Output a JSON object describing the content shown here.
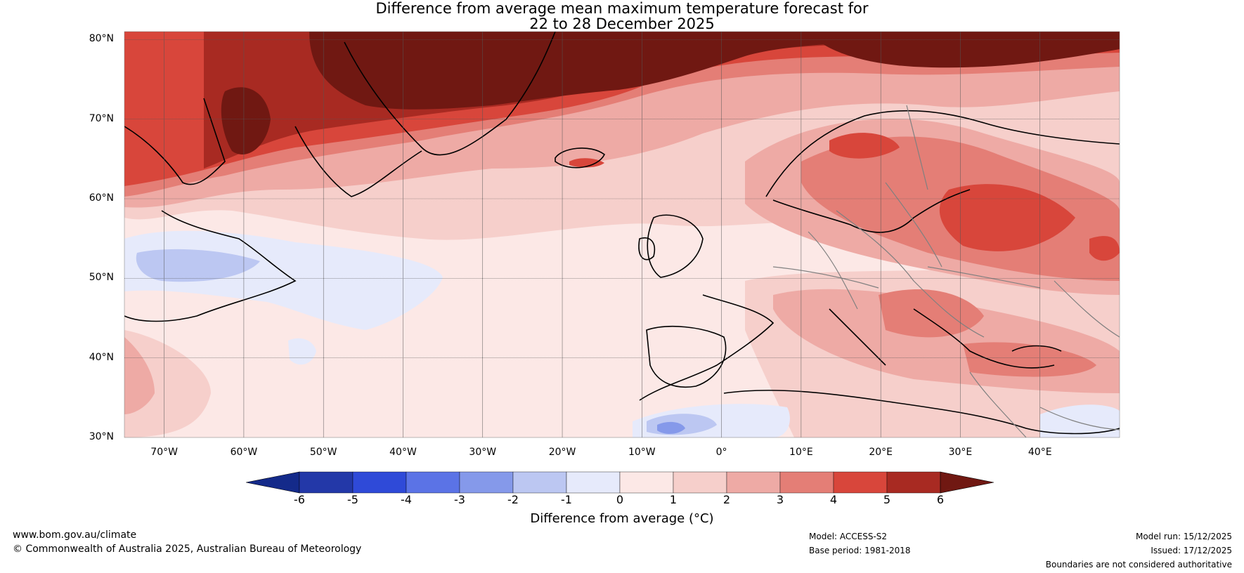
{
  "title": {
    "line1": "Difference from average mean maximum temperature forecast for",
    "line2": "22 to 28 December 2025"
  },
  "map": {
    "lat_labels": [
      "80°N",
      "70°N",
      "60°N",
      "50°N",
      "40°N",
      "30°N"
    ],
    "lon_labels": [
      "70°W",
      "60°W",
      "50°W",
      "40°W",
      "30°W",
      "20°W",
      "10°W",
      "0°",
      "10°E",
      "20°E",
      "30°E",
      "40°E"
    ],
    "lat_range": [
      30,
      81
    ],
    "lon_range": [
      -75,
      50
    ],
    "ocean_anomaly_color": "#fce8e6",
    "coastline_color": "#000000",
    "border_color": "#808080"
  },
  "colorbar": {
    "label": "Difference from average (°C)",
    "ticks": [
      "-6",
      "-5",
      "-4",
      "-3",
      "-2",
      "-1",
      "0",
      "1",
      "2",
      "3",
      "4",
      "5",
      "6"
    ],
    "low_extend_color": "#142a8a",
    "high_extend_color": "#701812",
    "bins": [
      {
        "from": -6,
        "to": -5,
        "color": "#2338a8"
      },
      {
        "from": -5,
        "to": -4,
        "color": "#2f4ad8"
      },
      {
        "from": -4,
        "to": -3,
        "color": "#5b73e6"
      },
      {
        "from": -3,
        "to": -2,
        "color": "#8599ea"
      },
      {
        "from": -2,
        "to": -1,
        "color": "#bcc7f2"
      },
      {
        "from": -1,
        "to": 0,
        "color": "#e6eafb"
      },
      {
        "from": 0,
        "to": 1,
        "color": "#fce8e6"
      },
      {
        "from": 1,
        "to": 2,
        "color": "#f6cfcb"
      },
      {
        "from": 2,
        "to": 3,
        "color": "#eeaaa5"
      },
      {
        "from": 3,
        "to": 4,
        "color": "#e47e76"
      },
      {
        "from": 4,
        "to": 5,
        "color": "#d8463b"
      },
      {
        "from": 5,
        "to": 6,
        "color": "#a82a22"
      }
    ]
  },
  "footer": {
    "website": "www.bom.gov.au/climate",
    "copyright": "© Commonwealth of Australia 2025, Australian Bureau of Meteorology",
    "model": "Model: ACCESS-S2",
    "base_period": "Base period: 1981-2018",
    "model_run": "Model run: 15/12/2025",
    "issued": "Issued: 17/12/2025",
    "disclaimer": "Boundaries are not considered authoritative"
  }
}
